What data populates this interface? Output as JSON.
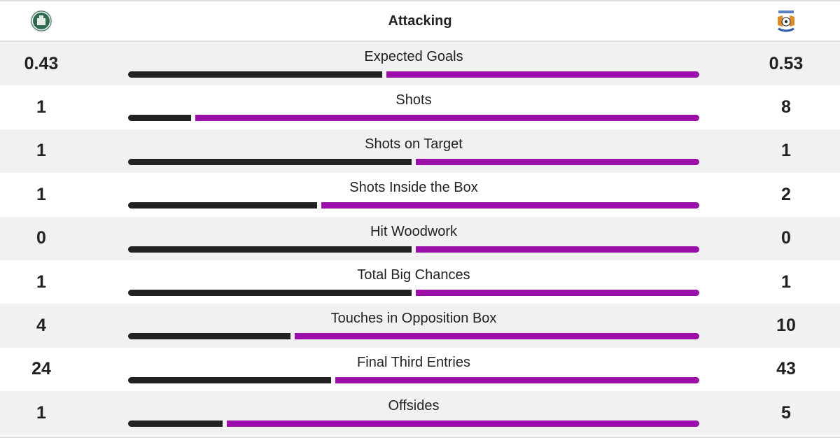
{
  "header": {
    "title": "Attacking",
    "home_crest": "hibernian-crest-icon",
    "away_crest": "kilmarnock-crest-icon"
  },
  "colors": {
    "home_bar": "#222222",
    "away_bar": "#9b0ea8",
    "row_shade": "#f1f1f1"
  },
  "stats": [
    {
      "label": "Expected Goals",
      "home": "0.43",
      "away": "0.53",
      "home_pct": 44.8
    },
    {
      "label": "Shots",
      "home": "1",
      "away": "8",
      "home_pct": 11.1
    },
    {
      "label": "Shots on Target",
      "home": "1",
      "away": "1",
      "home_pct": 50
    },
    {
      "label": "Shots Inside the Box",
      "home": "1",
      "away": "2",
      "home_pct": 33.3
    },
    {
      "label": "Hit Woodwork",
      "home": "0",
      "away": "0",
      "home_pct": 50
    },
    {
      "label": "Total Big Chances",
      "home": "1",
      "away": "1",
      "home_pct": 50
    },
    {
      "label": "Touches in Opposition Box",
      "home": "4",
      "away": "10",
      "home_pct": 28.6
    },
    {
      "label": "Final Third Entries",
      "home": "24",
      "away": "43",
      "home_pct": 35.8
    },
    {
      "label": "Offsides",
      "home": "1",
      "away": "5",
      "home_pct": 16.7
    }
  ]
}
